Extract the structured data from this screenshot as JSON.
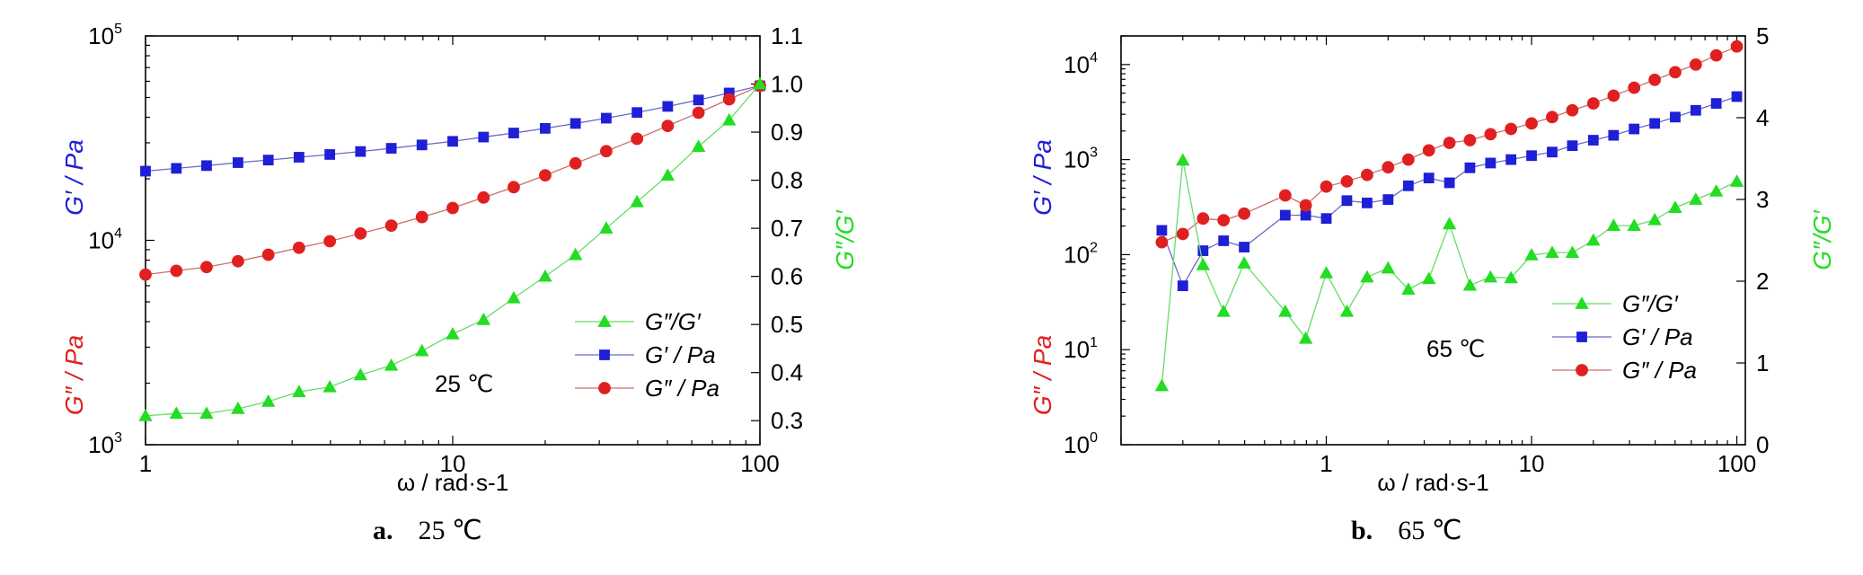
{
  "chart_data": [
    {
      "panel": "a",
      "type": "line",
      "caption": {
        "letter": "a.",
        "text": "25 ℃"
      },
      "annotation": "25 ℃",
      "xlabel": "ω / rad·s-1",
      "x_scale": "log",
      "xlim": [
        1,
        100
      ],
      "x_ticks": [
        {
          "v": 1,
          "label": "1"
        },
        {
          "v": 10,
          "label": "10"
        },
        {
          "v": 100,
          "label": "100"
        }
      ],
      "y_left": {
        "scale": "log",
        "lim": [
          1000,
          100000
        ],
        "ticks": [
          {
            "v": 1000,
            "base": "10",
            "exp": "3"
          },
          {
            "v": 10000,
            "base": "10",
            "exp": "4"
          },
          {
            "v": 100000,
            "base": "10",
            "exp": "5"
          }
        ],
        "label_red": "G″ / Pa",
        "label_blue": "G′ / Pa"
      },
      "y_right": {
        "scale": "linear",
        "lim": [
          0.25,
          1.1
        ],
        "ticks": [
          "0.3",
          "0.4",
          "0.5",
          "0.6",
          "0.7",
          "0.8",
          "0.9",
          "1.0",
          "1.1"
        ],
        "label": "G″/G′"
      },
      "legend": {
        "placement": "lower-right",
        "entries": [
          "G″/G′",
          "G′ / Pa",
          "G″ / Pa"
        ]
      },
      "colors": {
        "ratio": "#22dd22",
        "gprime": "#1f1fd6",
        "gdouble": "#e02020"
      },
      "x": [
        1,
        1.26,
        1.58,
        2,
        2.51,
        3.16,
        3.98,
        5.01,
        6.31,
        7.94,
        10,
        12.6,
        15.8,
        20,
        25.1,
        31.6,
        39.8,
        50.1,
        63.1,
        79.4,
        100
      ],
      "series": [
        {
          "name": "G′ / Pa",
          "marker": "square",
          "axis": "left",
          "values": [
            21800,
            22500,
            23200,
            24000,
            24700,
            25500,
            26300,
            27200,
            28200,
            29300,
            30500,
            32000,
            33500,
            35300,
            37300,
            39600,
            42200,
            45200,
            48600,
            52600,
            57000
          ]
        },
        {
          "name": "G″ / Pa",
          "marker": "circle",
          "axis": "left",
          "values": [
            6800,
            7100,
            7400,
            7900,
            8500,
            9200,
            9900,
            10800,
            11800,
            13000,
            14400,
            16200,
            18200,
            20800,
            23800,
            27300,
            31400,
            36300,
            42100,
            49000,
            57000
          ]
        },
        {
          "name": "G″/G′",
          "marker": "triangle",
          "axis": "right",
          "values": [
            0.31,
            0.315,
            0.315,
            0.325,
            0.34,
            0.36,
            0.37,
            0.395,
            0.415,
            0.445,
            0.48,
            0.51,
            0.555,
            0.6,
            0.645,
            0.7,
            0.755,
            0.81,
            0.87,
            0.925,
            1.0
          ]
        }
      ]
    },
    {
      "panel": "b",
      "type": "line",
      "caption": {
        "letter": "b.",
        "text": "65 ℃"
      },
      "annotation": "65 ℃",
      "xlabel": "ω / rad·s-1",
      "x_scale": "log",
      "xlim": [
        0.1,
        110
      ],
      "x_ticks": [
        {
          "v": 1,
          "label": "1"
        },
        {
          "v": 10,
          "label": "10"
        },
        {
          "v": 100,
          "label": "100"
        }
      ],
      "y_left": {
        "scale": "log",
        "lim": [
          1,
          20000
        ],
        "ticks": [
          {
            "v": 1,
            "base": "10",
            "exp": "0"
          },
          {
            "v": 10,
            "base": "10",
            "exp": "1"
          },
          {
            "v": 100,
            "base": "10",
            "exp": "2"
          },
          {
            "v": 1000,
            "base": "10",
            "exp": "3"
          },
          {
            "v": 10000,
            "base": "10",
            "exp": "4"
          }
        ],
        "label_red": "G″ / Pa",
        "label_blue": "G′ / Pa"
      },
      "y_right": {
        "scale": "linear",
        "lim": [
          0,
          5
        ],
        "ticks": [
          "0",
          "1",
          "2",
          "3",
          "4",
          "5"
        ],
        "label": "G″/G′"
      },
      "legend": {
        "placement": "lower-right",
        "entries": [
          "G″/G′",
          "G′ / Pa",
          "G″ / Pa"
        ]
      },
      "colors": {
        "ratio": "#22dd22",
        "gprime": "#1f1fd6",
        "gdouble": "#e02020"
      },
      "x": [
        0.158,
        0.2,
        0.251,
        0.316,
        0.398,
        0.631,
        0.794,
        1,
        1.26,
        1.58,
        2,
        2.51,
        3.16,
        3.98,
        5.01,
        6.31,
        7.94,
        10,
        12.6,
        15.8,
        20,
        25.1,
        31.6,
        39.8,
        50.1,
        63.1,
        79.4,
        100
      ],
      "series": [
        {
          "name": "G′ / Pa",
          "marker": "square",
          "axis": "left",
          "values": [
            180,
            47,
            110,
            140,
            120,
            260,
            260,
            240,
            370,
            350,
            380,
            530,
            640,
            570,
            820,
            920,
            1000,
            1100,
            1200,
            1400,
            1600,
            1800,
            2100,
            2400,
            2800,
            3300,
            3900,
            4600
          ]
        },
        {
          "name": "G″ / Pa",
          "marker": "circle",
          "axis": "left",
          "values": [
            135,
            165,
            240,
            230,
            270,
            420,
            330,
            520,
            590,
            690,
            830,
            1000,
            1250,
            1500,
            1600,
            1850,
            2100,
            2400,
            2800,
            3300,
            3900,
            4700,
            5700,
            6900,
            8300,
            10000,
            12500,
            15500
          ]
        },
        {
          "name": "G″/G′",
          "marker": "triangle",
          "axis": "right",
          "values": [
            0.72,
            3.48,
            2.2,
            1.63,
            2.22,
            1.63,
            1.3,
            2.1,
            1.63,
            2.05,
            2.16,
            1.9,
            2.03,
            2.7,
            1.95,
            2.05,
            2.04,
            2.32,
            2.35,
            2.35,
            2.5,
            2.68,
            2.68,
            2.75,
            2.9,
            3.0,
            3.1,
            3.22
          ]
        }
      ]
    }
  ]
}
